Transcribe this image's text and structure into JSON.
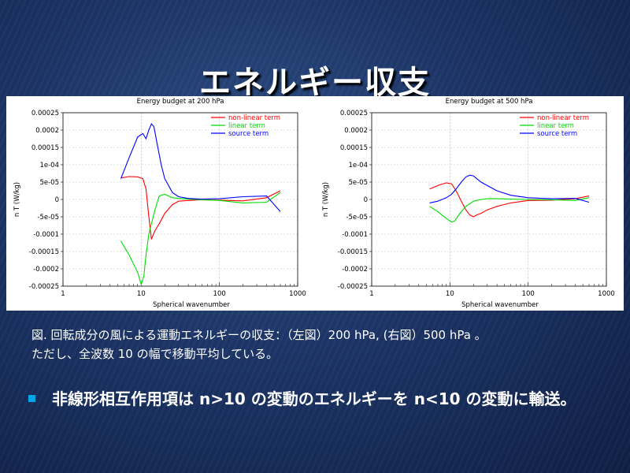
{
  "slide": {
    "title": "エネルギー収支",
    "caption_line1": "図. 回転成分の風による運動エネルギーの収支：（左図）200 hPa, (右図）500 hPa 。",
    "caption_line2": "ただし、全波数 10 の幅で移動平均している。",
    "bullet": "非線形相互作用項は n>10 の変動のエネルギーを n<10 の変動に輸送。"
  },
  "colors": {
    "non_linear": "#ff0000",
    "linear": "#00dd00",
    "source": "#0000ff",
    "bullet": "#00a6e6"
  },
  "chart_data": [
    {
      "type": "line",
      "title": "Energy budget at 200 hPa",
      "xlabel": "Spherical wavenumber",
      "ylabel": "n T (W/kg)",
      "xscale": "log",
      "xlim": [
        1,
        1000
      ],
      "ylim": [
        -0.00025,
        0.00025
      ],
      "xticks": [
        "1",
        "10",
        "100",
        "1000"
      ],
      "yticks": [
        "0.00025",
        "0.0002",
        "0.00015",
        "1e-04",
        "5e-05",
        "0",
        "-5e-05",
        "-0.0001",
        "-0.00015",
        "-0.0002",
        "-0.00025"
      ],
      "grid": true,
      "legend_position": "top-right",
      "series": [
        {
          "name": "non-linear term",
          "color_key": "non_linear",
          "x": [
            5.5,
            7,
            9,
            10.5,
            11.5,
            12.5,
            13.5,
            15,
            17,
            20,
            25,
            30,
            40,
            60,
            100,
            200,
            400,
            600
          ],
          "y": [
            6.2e-05,
            6.6e-05,
            6.5e-05,
            6e-05,
            3e-05,
            -5e-05,
            -0.000115,
            -9e-05,
            -7e-05,
            -4e-05,
            -1.5e-05,
            -5e-06,
            -3e-06,
            -1e-06,
            -2e-06,
            -4e-06,
            5e-06,
            2.5e-05
          ]
        },
        {
          "name": "linear term",
          "color_key": "linear",
          "x": [
            5.5,
            7,
            9,
            10,
            10.8,
            11.5,
            12.5,
            13.5,
            15,
            17,
            20,
            25,
            30,
            40,
            60,
            100,
            200,
            400,
            600
          ],
          "y": [
            -0.00012,
            -0.00016,
            -0.00021,
            -0.000245,
            -0.00022,
            -0.00016,
            -0.0001,
            -7e-05,
            -3e-05,
            1e-05,
            1.5e-05,
            5e-06,
            3e-06,
            1e-06,
            -1e-06,
            -3e-06,
            -1e-05,
            -8e-06,
            2e-05
          ]
        },
        {
          "name": "source term",
          "color_key": "source",
          "x": [
            5.5,
            7,
            9,
            10.5,
            11.5,
            12.5,
            13.5,
            14.5,
            16,
            18,
            20,
            25,
            30,
            40,
            60,
            100,
            200,
            400,
            600
          ],
          "y": [
            6e-05,
            0.00012,
            0.00018,
            0.00019,
            0.000175,
            0.0002,
            0.000218,
            0.00021,
            0.00016,
            0.0001,
            6e-05,
            2e-05,
            8e-06,
            3e-06,
            1e-06,
            2e-06,
            8e-06,
            1e-05,
            -3.5e-05
          ]
        }
      ]
    },
    {
      "type": "line",
      "title": "Energy budget at 500 hPa",
      "xlabel": "Spherical wavenumber",
      "ylabel": "n T (W/kg)",
      "xscale": "log",
      "xlim": [
        1,
        1000
      ],
      "ylim": [
        -0.00025,
        0.00025
      ],
      "xticks": [
        "1",
        "10",
        "100",
        "1000"
      ],
      "yticks": [
        "0.00025",
        "0.0002",
        "0.00015",
        "1e-04",
        "5e-05",
        "0",
        "-5e-05",
        "-0.0001",
        "-0.00015",
        "-0.0002",
        "-0.00025"
      ],
      "grid": true,
      "legend_position": "top-right",
      "series": [
        {
          "name": "non-linear term",
          "color_key": "non_linear",
          "x": [
            5.5,
            7,
            9,
            10.5,
            12,
            14,
            16,
            18,
            20,
            22,
            25,
            30,
            40,
            60,
            100,
            200,
            400,
            600
          ],
          "y": [
            3e-05,
            4e-05,
            4.8e-05,
            4.5e-05,
            2.5e-05,
            -5e-06,
            -3e-05,
            -4.5e-05,
            -5e-05,
            -4.5e-05,
            -4e-05,
            -3e-05,
            -2e-05,
            -1e-05,
            -3e-06,
            -2e-06,
            2e-06,
            1e-05
          ]
        },
        {
          "name": "linear term",
          "color_key": "linear",
          "x": [
            5.5,
            7,
            9,
            10.5,
            11.5,
            12.5,
            14,
            16,
            18,
            20,
            25,
            30,
            40,
            60,
            100,
            200,
            400,
            600
          ],
          "y": [
            -2e-05,
            -3.5e-05,
            -5.5e-05,
            -6.5e-05,
            -6.2e-05,
            -5e-05,
            -3.5e-05,
            -2e-05,
            -1.2e-05,
            -5e-06,
            0,
            2e-06,
            2e-06,
            1e-06,
            0,
            -1e-06,
            -3e-06,
            5e-06
          ]
        },
        {
          "name": "source term",
          "color_key": "source",
          "x": [
            5.5,
            7,
            9,
            10.5,
            12,
            14,
            16,
            18,
            20,
            22,
            25,
            30,
            40,
            60,
            100,
            200,
            400,
            600
          ],
          "y": [
            -1e-05,
            -5e-06,
            5e-06,
            1.5e-05,
            3e-05,
            5e-05,
            6.5e-05,
            7e-05,
            6.8e-05,
            6e-05,
            5e-05,
            4e-05,
            2.5e-05,
            1.2e-05,
            5e-06,
            2e-06,
            3e-06,
            -8e-06
          ]
        }
      ]
    }
  ]
}
